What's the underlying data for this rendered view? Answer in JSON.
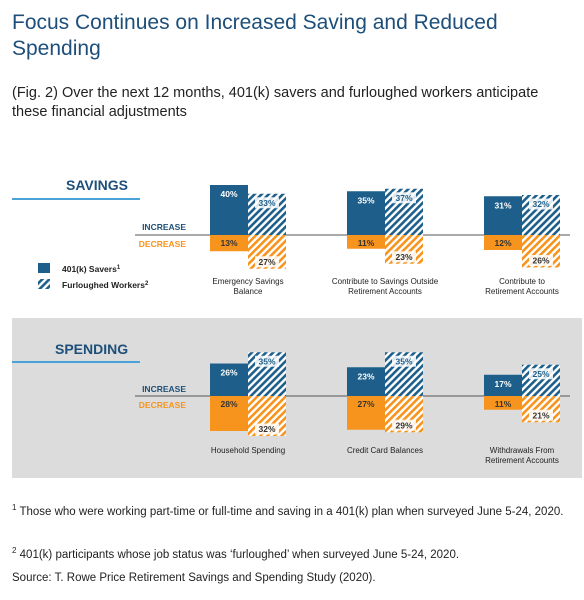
{
  "title": "Focus Continues on Increased Saving and Reduced Spending",
  "subtitle": "(Fig. 2) Over the next 12 months, 401(k) savers and furloughed workers anticipate these financial adjustments",
  "colors": {
    "savers": "#1d5f8a",
    "furloughed": "#1d5f8a",
    "decrease": "#f7941d",
    "accent_line": "#4aa3d8",
    "panel_bg": "#dcdcdc",
    "heading": "#1d4f7a",
    "increase_label": "#1d4f7a",
    "decrease_label": "#f7941d"
  },
  "chart_data": [
    {
      "type": "bar",
      "panel": "SAVINGS",
      "increase_label": "INCREASE",
      "decrease_label": "DECREASE",
      "categories": [
        "Emergency Savings Balance",
        "Contribute to Savings Outside Retirement Accounts",
        "Contribute to Retirement Accounts"
      ],
      "category_lines": [
        [
          "Emergency Savings",
          "Balance"
        ],
        [
          "Contribute to Savings Outside",
          "Retirement Accounts"
        ],
        [
          "Contribute to",
          "Retirement Accounts"
        ]
      ],
      "series": [
        {
          "name": "401(k) Savers",
          "increase": [
            40,
            35,
            31
          ],
          "decrease": [
            13,
            11,
            12
          ]
        },
        {
          "name": "Furloughed Workers",
          "increase": [
            33,
            37,
            32
          ],
          "decrease": [
            27,
            23,
            26
          ]
        }
      ],
      "legend": [
        {
          "label": "401(k) Savers",
          "note": "1",
          "pattern": "solid"
        },
        {
          "label": "Furloughed Workers",
          "note": "2",
          "pattern": "hatched"
        }
      ]
    },
    {
      "type": "bar",
      "panel": "SPENDING",
      "increase_label": "INCREASE",
      "decrease_label": "DECREASE",
      "categories": [
        "Household Spending",
        "Credit Card Balances",
        "Withdrawals From Retirement Accounts"
      ],
      "category_lines": [
        [
          "Household Spending"
        ],
        [
          "Credit Card Balances"
        ],
        [
          "Withdrawals From",
          "Retirement Accounts"
        ]
      ],
      "series": [
        {
          "name": "401(k) Savers",
          "increase": [
            26,
            23,
            17
          ],
          "decrease": [
            28,
            27,
            11
          ]
        },
        {
          "name": "Furloughed Workers",
          "increase": [
            35,
            35,
            25
          ],
          "decrease": [
            32,
            29,
            21
          ]
        }
      ]
    }
  ],
  "footnotes": [
    {
      "mark": "1",
      "text": "Those who were working part-time or full-time and saving in a 401(k) plan when surveyed June 5-24, 2020."
    },
    {
      "mark": "2",
      "text": "401(k) participants whose job status was ‘furloughed’ when surveyed June 5-24, 2020."
    }
  ],
  "source": "Source: T. Rowe Price Retirement Savings and Spending Study (2020)."
}
